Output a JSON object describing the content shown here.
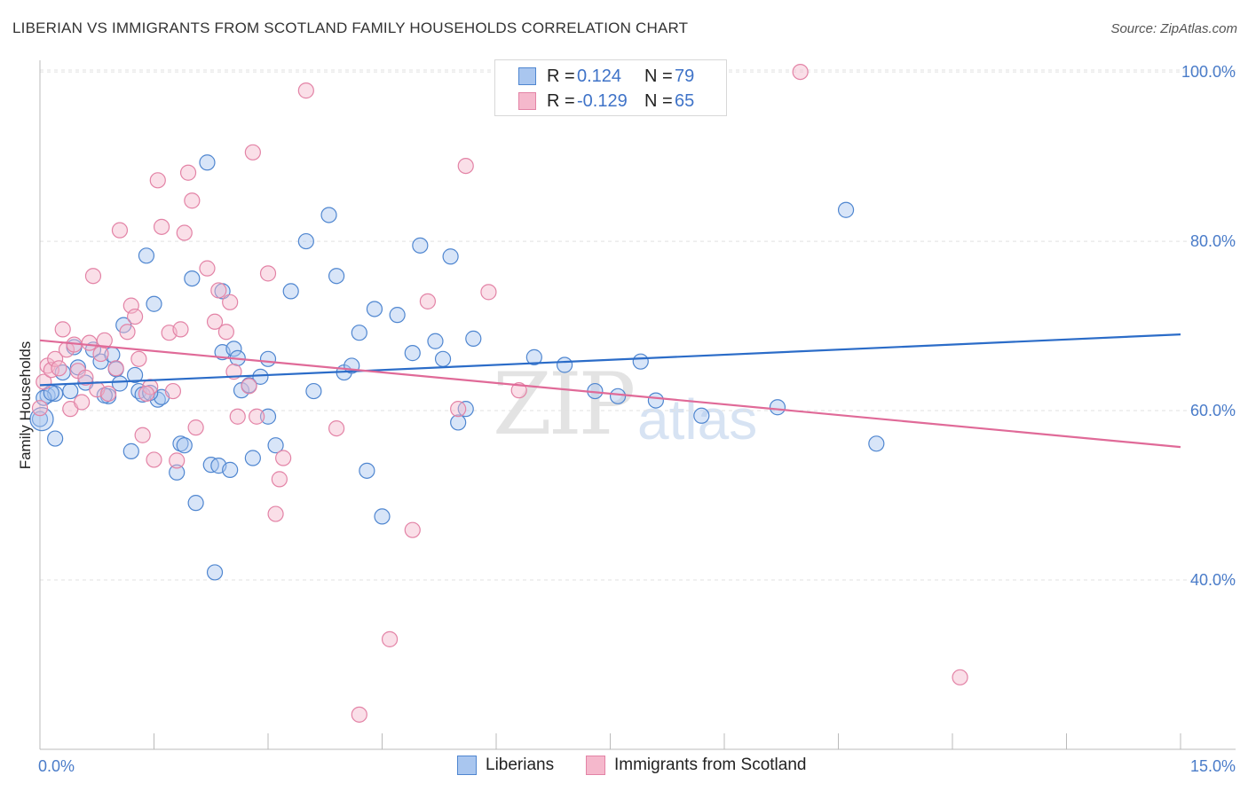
{
  "header": {
    "title": "LIBERIAN VS IMMIGRANTS FROM SCOTLAND FAMILY HOUSEHOLDS CORRELATION CHART",
    "source": "Source: ZipAtlas.com"
  },
  "watermark": {
    "zip": "ZIP",
    "atlas": "atlas"
  },
  "legend": {
    "rows": [
      {
        "r_label": "R =",
        "r_value": "0.124",
        "n_label": "N =",
        "n_value": "79"
      },
      {
        "r_label": "R =",
        "r_value": "-0.129",
        "n_label": "N =",
        "n_value": "65"
      }
    ]
  },
  "bottom_legend": {
    "series1": "Liberians",
    "series2": "Immigrants from Scotland"
  },
  "colors": {
    "series1_fill": "#a9c6ef",
    "series1_stroke": "#4f86d0",
    "series1_line": "#2b6cc8",
    "series2_fill": "#f5b8cc",
    "series2_stroke": "#e383a6",
    "series2_line": "#e06a98",
    "grid": "#e2e2e2",
    "tick_text": "#4a7cc9"
  },
  "chart_data": {
    "type": "scatter",
    "title": "LIBERIAN VS IMMIGRANTS FROM SCOTLAND FAMILY HOUSEHOLDS CORRELATION CHART",
    "xlabel": "",
    "ylabel": "Family Households",
    "xlim": [
      0,
      15
    ],
    "ylim": [
      20,
      102
    ],
    "x_tick_labels": [
      "0.0%",
      "15.0%"
    ],
    "y_ticks": [
      40,
      60,
      80,
      100
    ],
    "y_tick_labels": [
      "40.0%",
      "60.0%",
      "80.0%",
      "100.0%"
    ],
    "grid": true,
    "legend_position": "top-center",
    "series": [
      {
        "name": "Liberians",
        "trend": {
          "x": [
            0,
            15
          ],
          "y": [
            63.0,
            69.0
          ]
        },
        "points": [
          [
            0.0,
            59.0
          ],
          [
            0.1,
            61.8
          ],
          [
            0.2,
            62.0
          ],
          [
            0.2,
            56.7
          ],
          [
            0.3,
            64.5
          ],
          [
            0.4,
            62.3
          ],
          [
            0.5,
            65.1
          ],
          [
            0.6,
            63.3
          ],
          [
            0.7,
            67.2
          ],
          [
            0.8,
            65.8
          ],
          [
            0.9,
            61.7
          ],
          [
            0.95,
            66.6
          ],
          [
            1.0,
            64.9
          ],
          [
            1.05,
            63.2
          ],
          [
            1.1,
            70.1
          ],
          [
            1.2,
            55.2
          ],
          [
            1.25,
            64.2
          ],
          [
            1.3,
            62.3
          ],
          [
            1.35,
            61.9
          ],
          [
            1.4,
            78.3
          ],
          [
            1.5,
            72.6
          ],
          [
            1.55,
            61.3
          ],
          [
            1.6,
            61.6
          ],
          [
            1.8,
            52.7
          ],
          [
            1.85,
            56.1
          ],
          [
            1.9,
            55.9
          ],
          [
            2.0,
            75.6
          ],
          [
            2.05,
            49.1
          ],
          [
            2.2,
            89.3
          ],
          [
            2.25,
            53.6
          ],
          [
            2.3,
            40.9
          ],
          [
            2.35,
            53.5
          ],
          [
            2.4,
            74.1
          ],
          [
            2.4,
            66.9
          ],
          [
            2.5,
            53.0
          ],
          [
            2.55,
            67.3
          ],
          [
            2.6,
            66.2
          ],
          [
            2.65,
            62.4
          ],
          [
            2.75,
            63.0
          ],
          [
            2.8,
            54.4
          ],
          [
            2.9,
            64.0
          ],
          [
            3.0,
            59.3
          ],
          [
            3.0,
            66.1
          ],
          [
            3.1,
            55.9
          ],
          [
            3.3,
            74.1
          ],
          [
            3.5,
            80.0
          ],
          [
            3.6,
            62.3
          ],
          [
            3.8,
            83.1
          ],
          [
            3.9,
            75.9
          ],
          [
            4.0,
            64.5
          ],
          [
            4.1,
            65.3
          ],
          [
            4.2,
            69.2
          ],
          [
            4.3,
            52.9
          ],
          [
            4.4,
            72.0
          ],
          [
            4.5,
            47.5
          ],
          [
            4.7,
            71.3
          ],
          [
            4.9,
            66.8
          ],
          [
            5.0,
            79.5
          ],
          [
            5.2,
            68.2
          ],
          [
            5.3,
            66.1
          ],
          [
            5.4,
            78.2
          ],
          [
            5.5,
            58.6
          ],
          [
            5.6,
            60.2
          ],
          [
            5.7,
            68.5
          ],
          [
            6.5,
            66.3
          ],
          [
            6.9,
            65.4
          ],
          [
            7.3,
            62.3
          ],
          [
            7.6,
            61.7
          ],
          [
            7.9,
            65.8
          ],
          [
            8.1,
            61.2
          ],
          [
            8.7,
            59.4
          ],
          [
            9.7,
            60.4
          ],
          [
            10.6,
            83.7
          ],
          [
            11.0,
            56.1
          ],
          [
            0.05,
            61.5
          ],
          [
            0.15,
            62.1
          ],
          [
            0.45,
            67.5
          ],
          [
            0.85,
            61.8
          ],
          [
            1.45,
            62.1
          ]
        ]
      },
      {
        "name": "Immigrants from Scotland",
        "trend": {
          "x": [
            0,
            15
          ],
          "y": [
            68.3,
            55.7
          ]
        },
        "points": [
          [
            0.0,
            60.3
          ],
          [
            0.05,
            63.4
          ],
          [
            0.1,
            65.3
          ],
          [
            0.15,
            64.8
          ],
          [
            0.2,
            66.1
          ],
          [
            0.3,
            69.6
          ],
          [
            0.35,
            67.2
          ],
          [
            0.4,
            60.2
          ],
          [
            0.45,
            67.8
          ],
          [
            0.5,
            64.7
          ],
          [
            0.55,
            61.0
          ],
          [
            0.6,
            63.9
          ],
          [
            0.7,
            75.9
          ],
          [
            0.75,
            62.5
          ],
          [
            0.8,
            66.7
          ],
          [
            0.85,
            68.3
          ],
          [
            0.9,
            62.0
          ],
          [
            1.0,
            65.0
          ],
          [
            1.05,
            81.3
          ],
          [
            1.15,
            69.3
          ],
          [
            1.2,
            72.4
          ],
          [
            1.25,
            71.1
          ],
          [
            1.3,
            66.1
          ],
          [
            1.35,
            57.1
          ],
          [
            1.45,
            62.8
          ],
          [
            1.5,
            54.2
          ],
          [
            1.55,
            87.2
          ],
          [
            1.6,
            81.7
          ],
          [
            1.7,
            69.2
          ],
          [
            1.75,
            62.3
          ],
          [
            1.8,
            54.1
          ],
          [
            1.85,
            69.6
          ],
          [
            1.9,
            81.0
          ],
          [
            1.95,
            88.1
          ],
          [
            2.0,
            84.8
          ],
          [
            2.05,
            58.0
          ],
          [
            2.2,
            76.8
          ],
          [
            2.3,
            70.5
          ],
          [
            2.35,
            74.2
          ],
          [
            2.45,
            69.3
          ],
          [
            2.5,
            72.8
          ],
          [
            2.55,
            64.6
          ],
          [
            2.6,
            59.3
          ],
          [
            2.75,
            62.9
          ],
          [
            2.8,
            90.5
          ],
          [
            2.85,
            59.3
          ],
          [
            3.0,
            76.2
          ],
          [
            3.1,
            47.8
          ],
          [
            3.15,
            51.9
          ],
          [
            3.2,
            54.4
          ],
          [
            3.5,
            97.8
          ],
          [
            3.9,
            57.9
          ],
          [
            4.2,
            24.1
          ],
          [
            4.6,
            33.0
          ],
          [
            4.9,
            45.9
          ],
          [
            5.1,
            72.9
          ],
          [
            5.5,
            60.2
          ],
          [
            5.6,
            88.9
          ],
          [
            5.9,
            74.0
          ],
          [
            6.3,
            62.4
          ],
          [
            10.0,
            100.0
          ],
          [
            12.1,
            28.5
          ],
          [
            0.25,
            65.0
          ],
          [
            0.65,
            68.0
          ],
          [
            1.4,
            62.0
          ]
        ]
      }
    ]
  }
}
